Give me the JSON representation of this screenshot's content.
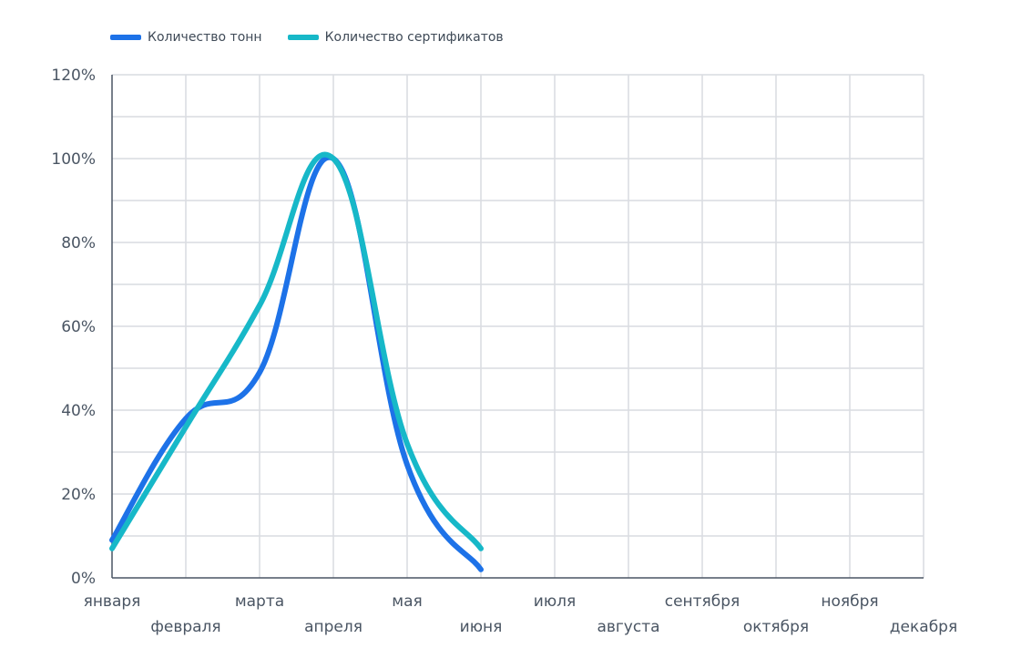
{
  "chart_data": {
    "type": "line",
    "categories": [
      "января",
      "февраля",
      "марта",
      "апреля",
      "мая",
      "июня",
      "июля",
      "августа",
      "сентября",
      "октября",
      "ноября",
      "декабря"
    ],
    "series": [
      {
        "name": "Количество тонн",
        "color": "#1d72e8",
        "values": [
          9,
          38,
          49,
          100,
          27,
          2,
          null,
          null,
          null,
          null,
          null,
          null
        ]
      },
      {
        "name": "Количество сертификатов",
        "color": "#17b8c8",
        "values": [
          7,
          36,
          65,
          100,
          32,
          7,
          null,
          null,
          null,
          null,
          null,
          null
        ]
      }
    ],
    "ylim": [
      0,
      120
    ],
    "yticks": [
      "0%",
      "20%",
      "40%",
      "60%",
      "80%",
      "100%",
      "120%"
    ],
    "grid": true,
    "legend": "top-left"
  }
}
